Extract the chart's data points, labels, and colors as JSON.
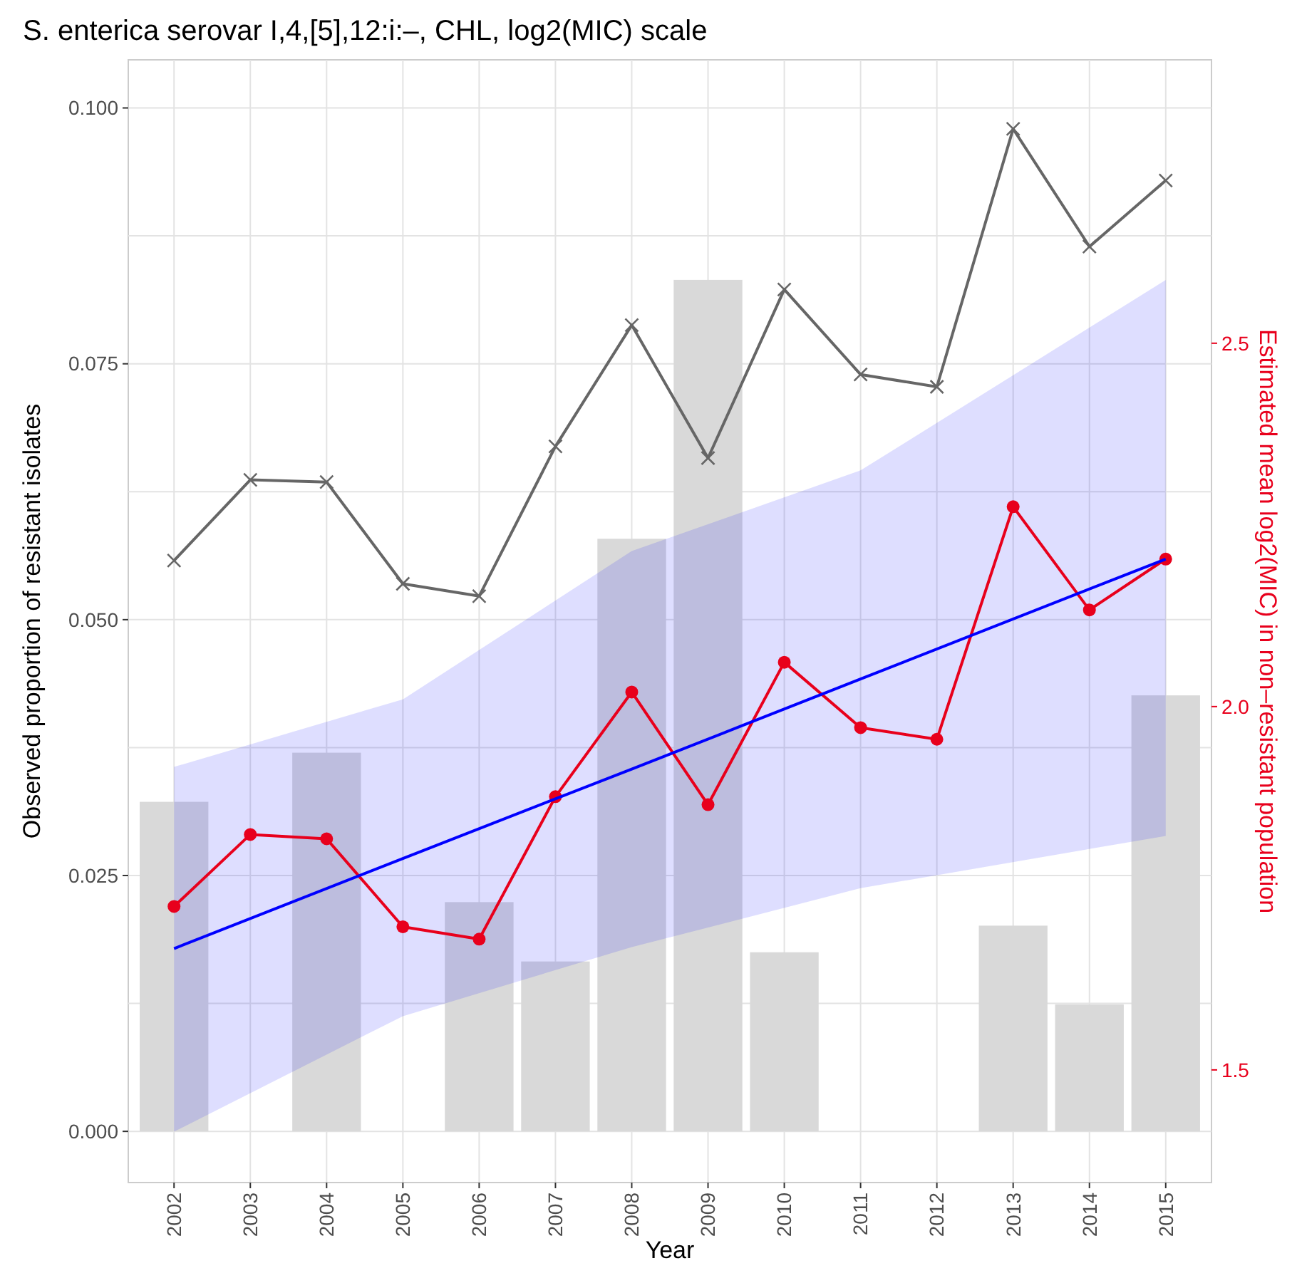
{
  "chart_data": {
    "type": "bar",
    "title": "S. enterica serovar I,4,[5],12:i:–, CHL, log2(MIC) scale",
    "xlabel": "Year",
    "ylabel": "Observed proportion of resistant isolates",
    "y2label": "Estimated mean log2(MIC) in non–resistant population",
    "x": [
      2002,
      2003,
      2004,
      2005,
      2006,
      2007,
      2008,
      2009,
      2010,
      2011,
      2012,
      2013,
      2014,
      2015
    ],
    "xlim": [
      2001.4,
      2015.6
    ],
    "xticks": [
      2002,
      2003,
      2004,
      2005,
      2006,
      2007,
      2008,
      2009,
      2010,
      2011,
      2012,
      2013,
      2014,
      2015
    ],
    "ylim": [
      -0.005,
      0.1047
    ],
    "yticks": [
      {
        "value": 0,
        "label": "0.000"
      },
      {
        "value": 0.0125,
        "label": null
      },
      {
        "value": 0.025,
        "label": "0.025"
      },
      {
        "value": 0.0375,
        "label": null
      },
      {
        "value": 0.05,
        "label": "0.050"
      },
      {
        "value": 0.0625,
        "label": null
      },
      {
        "value": 0.075,
        "label": "0.075"
      },
      {
        "value": 0.0875,
        "label": null
      },
      {
        "value": 0.1,
        "label": "0.100"
      }
    ],
    "y2lim": [
      1.345,
      2.89
    ],
    "y2ticks": [
      1.5,
      {
        "value": 2.0,
        "label": "2.0"
      },
      2.5
    ],
    "grid": true,
    "series": [
      {
        "color": "#d9d9d9",
        "values": [
          0.0322,
          null,
          0.037,
          null,
          0.0224,
          0.0166,
          0.0579,
          0.0832,
          0.0175,
          null,
          null,
          0.0201,
          0.0124,
          0.0426
        ]
      },
      {
        "type": "line",
        "axis": "y2",
        "color": "#e8001c",
        "marker": "circle",
        "line_style": "solid",
        "values": [
          1.725,
          1.824,
          1.818,
          1.697,
          1.68,
          1.876,
          2.02,
          1.865,
          2.061,
          1.971,
          1.955,
          2.275,
          2.133,
          2.203
        ]
      },
      {
        "type": "line",
        "axis": "y2",
        "color": "#666666",
        "marker": "cross",
        "line_style": "solid",
        "values": [
          2.201,
          2.312,
          2.309,
          2.169,
          2.152,
          2.358,
          2.525,
          2.342,
          2.574,
          2.457,
          2.44,
          2.795,
          2.633,
          2.724
        ]
      },
      {
        "type": "line",
        "axis": "y2",
        "color": "#0000ff",
        "marker": "none",
        "line_style": "solid",
        "x": [
          2002,
          2005,
          2008,
          2011,
          2015
        ],
        "values": [
          1.667,
          1.791,
          1.914,
          2.038,
          2.203
        ],
        "lower": [
          1.415,
          1.574,
          1.669,
          1.75,
          1.822
        ],
        "upper": [
          1.917,
          2.01,
          2.214,
          2.325,
          2.587
        ]
      }
    ]
  }
}
